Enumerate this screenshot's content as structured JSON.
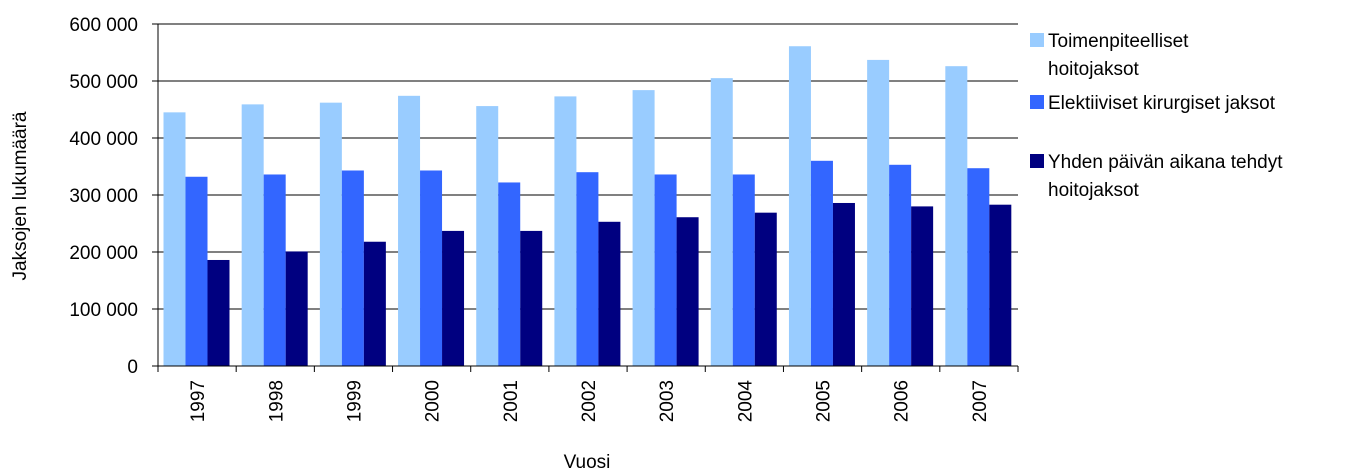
{
  "chart_data": {
    "type": "bar",
    "title": "",
    "xlabel": "Vuosi",
    "ylabel": "Jaksojen lukumäärä",
    "categories": [
      "1997",
      "1998",
      "1999",
      "2000",
      "2001",
      "2002",
      "2003",
      "2004",
      "2005",
      "2006",
      "2007"
    ],
    "series": [
      {
        "name": "Toimenpiteelliset hoitojaksot",
        "legend_lines": [
          "Toimenpiteelliset",
          "hoitojaksot"
        ],
        "color": "#99CCFF",
        "values": [
          445000,
          459000,
          462000,
          474000,
          456000,
          473000,
          484000,
          505000,
          561000,
          537000,
          526000
        ]
      },
      {
        "name": "Elektiiviset kirurgiset jaksot",
        "legend_lines": [
          "Elektiiviset kirurgiset jaksot"
        ],
        "color": "#3366FF",
        "values": [
          332000,
          336000,
          343000,
          343000,
          322000,
          340000,
          336000,
          336000,
          360000,
          353000,
          347000
        ]
      },
      {
        "name": "Yhden päivän aikana tehdyt hoitojaksot",
        "legend_lines": [
          "Yhden päivän aikana tehdyt",
          "hoitojaksot"
        ],
        "color": "#000080",
        "values": [
          186000,
          201000,
          218000,
          237000,
          237000,
          253000,
          261000,
          269000,
          286000,
          280000,
          283000
        ]
      }
    ],
    "ylim": [
      0,
      600000
    ],
    "yticks": [
      0,
      100000,
      200000,
      300000,
      400000,
      500000,
      600000
    ],
    "ytick_labels": [
      "0",
      "100 000",
      "200 000",
      "300 000",
      "400 000",
      "500 000",
      "600 000"
    ],
    "grid": true,
    "legend_position": "right"
  }
}
